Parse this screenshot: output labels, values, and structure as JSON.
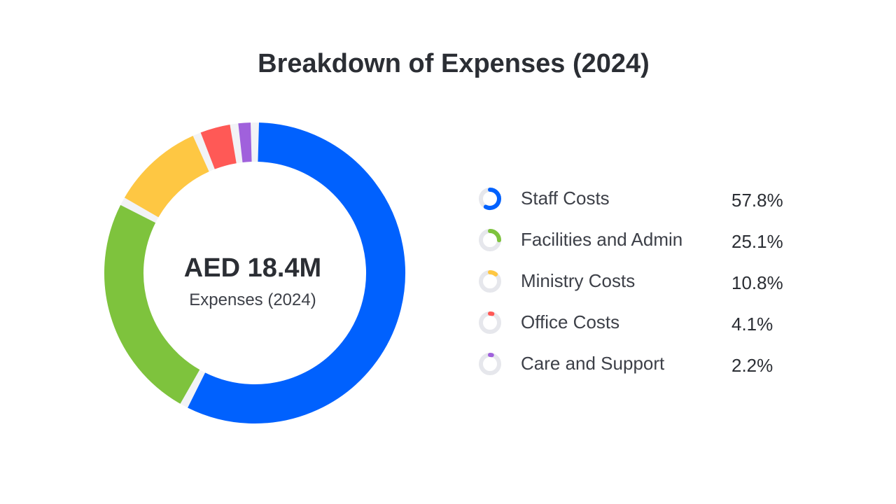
{
  "chart_data": {
    "type": "pie",
    "title": "Breakdown of Expenses (2024)",
    "center_value": "AED 18.4M",
    "center_label": "Expenses (2024)",
    "categories": [
      "Staff Costs",
      "Facilities and Admin",
      "Ministry Costs",
      "Office Costs",
      "Care and Support"
    ],
    "values": [
      57.8,
      25.1,
      10.8,
      4.1,
      2.2
    ],
    "value_labels": [
      "57.8%",
      "25.1%",
      "10.8%",
      "4.1%",
      "2.2%"
    ],
    "colors": [
      "#0061fe",
      "#7ec33d",
      "#fec743",
      "#ff5956",
      "#a061dc"
    ],
    "track_color": "#e6e7ec",
    "legend_position": "right",
    "style": "donut"
  }
}
